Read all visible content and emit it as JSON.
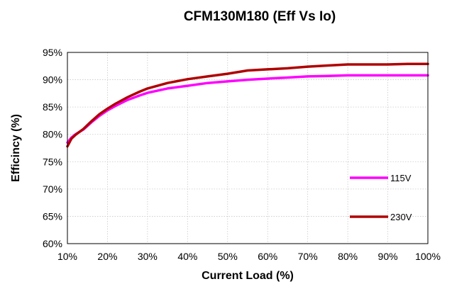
{
  "chart_data": {
    "type": "line",
    "title": "CFM130M180 (Eff Vs Io)",
    "xlabel": "Current Load (%)",
    "ylabel": "Efficincy (%)",
    "xlim": [
      10,
      100
    ],
    "ylim": [
      60,
      95
    ],
    "x_ticks": [
      "10%",
      "20%",
      "30%",
      "40%",
      "50%",
      "60%",
      "70%",
      "80%",
      "90%",
      "100%"
    ],
    "y_ticks": [
      "60%",
      "65%",
      "70%",
      "75%",
      "80%",
      "85%",
      "90%",
      "95%"
    ],
    "grid": true,
    "legend_placement": "right",
    "series": [
      {
        "name": "115V",
        "color": "#ff00ff",
        "x": [
          10,
          11,
          12,
          14,
          16,
          18,
          20,
          22,
          25,
          28,
          30,
          35,
          40,
          45,
          50,
          55,
          60,
          65,
          70,
          75,
          80,
          85,
          90,
          95,
          100
        ],
        "y": [
          78.5,
          79.4,
          80.0,
          80.9,
          82.2,
          83.4,
          84.4,
          85.2,
          86.3,
          87.1,
          87.6,
          88.4,
          88.9,
          89.4,
          89.7,
          90.0,
          90.2,
          90.4,
          90.6,
          90.7,
          90.8,
          90.8,
          90.8,
          90.8,
          90.8
        ]
      },
      {
        "name": "230V",
        "color": "#b00000",
        "x": [
          10,
          11,
          12,
          14,
          16,
          18,
          20,
          22,
          25,
          28,
          30,
          35,
          40,
          45,
          50,
          55,
          60,
          65,
          70,
          75,
          80,
          85,
          90,
          95,
          100
        ],
        "y": [
          77.8,
          79.2,
          79.9,
          81.0,
          82.4,
          83.7,
          84.7,
          85.6,
          86.8,
          87.8,
          88.4,
          89.4,
          90.1,
          90.6,
          91.1,
          91.7,
          91.9,
          92.1,
          92.4,
          92.6,
          92.8,
          92.8,
          92.8,
          92.9,
          92.9
        ]
      }
    ]
  }
}
